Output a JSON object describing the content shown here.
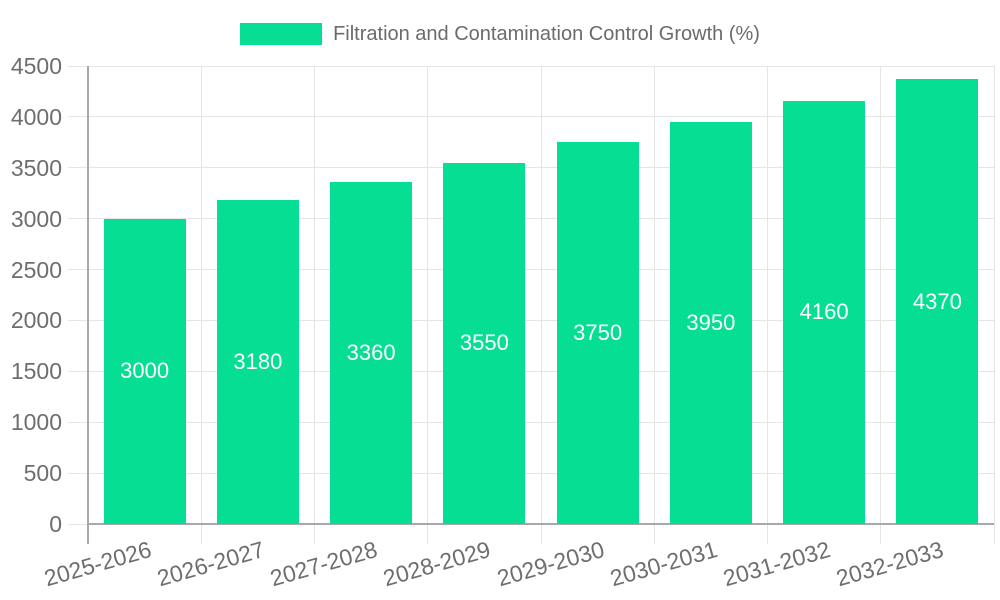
{
  "legend": {
    "label": "Filtration and Contamination Control Growth (%)"
  },
  "chart_data": {
    "type": "bar",
    "title": "Filtration and Contamination Control Growth (%)",
    "categories": [
      "2025-2026",
      "2026-2027",
      "2027-2028",
      "2028-2029",
      "2029-2030",
      "2030-2031",
      "2031-2032",
      "2032-2033"
    ],
    "values": [
      3000,
      3180,
      3360,
      3550,
      3750,
      3950,
      4160,
      4370
    ],
    "value_labels": [
      "3000",
      "3180",
      "3360",
      "3550",
      "3750",
      "3950",
      "4160",
      "4370"
    ],
    "xlabel": "",
    "ylabel": "",
    "ylim": [
      0,
      4500
    ],
    "yticks": [
      0,
      500,
      1000,
      1500,
      2000,
      2500,
      3000,
      3500,
      4000,
      4500
    ],
    "grid": true,
    "legend_position": "top",
    "colors": {
      "bar": "#06de94",
      "value_label": "#ffffff",
      "tick_text": "#6e6e6e",
      "legend_text": "#6b6b6b",
      "gridline": "#e5e5e5",
      "axis_line": "#a8a8a8"
    }
  }
}
